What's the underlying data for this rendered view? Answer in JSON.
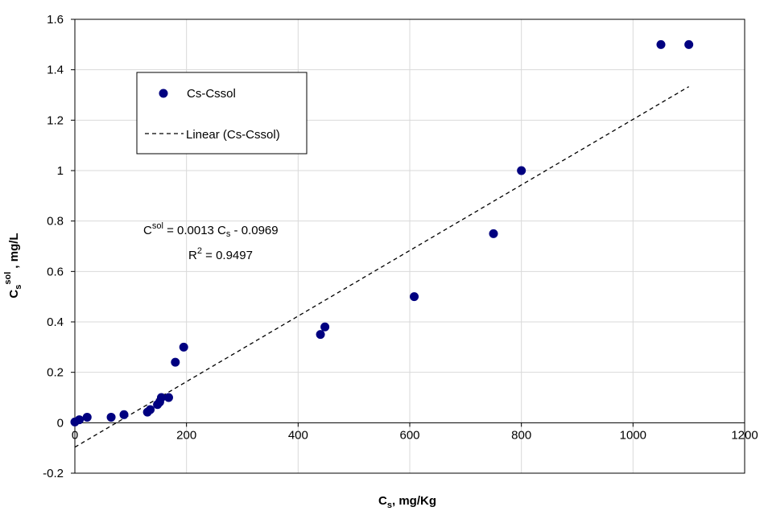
{
  "chart_data": {
    "type": "scatter",
    "title": "",
    "xlabel": {
      "main": "C",
      "sub": "s",
      "suffix": ", mg/Kg"
    },
    "ylabel": {
      "main": "C",
      "sub": "s",
      "sup": "sol",
      "suffix": " , mg/L"
    },
    "xlim": [
      0,
      1200
    ],
    "ylim": [
      -0.2,
      1.6
    ],
    "xticks": [
      "0",
      "200",
      "400",
      "600",
      "800",
      "1000",
      "1200"
    ],
    "yticks": [
      "-0.2",
      "0",
      "0.2",
      "0.4",
      "0.6",
      "0.8",
      "1",
      "1.2",
      "1.4",
      "1.6"
    ],
    "grid": true,
    "series": [
      {
        "name": "Cs-Cssol",
        "color": "#000080",
        "x": [
          0,
          8,
          22,
          65,
          88,
          130,
          135,
          148,
          152,
          155,
          168,
          180,
          195,
          440,
          448,
          608,
          750,
          800,
          1050,
          1100
        ],
        "y": [
          0.003,
          0.012,
          0.022,
          0.022,
          0.032,
          0.042,
          0.052,
          0.072,
          0.082,
          0.1,
          0.1,
          0.24,
          0.3,
          0.35,
          0.38,
          0.5,
          0.75,
          1.0,
          1.5,
          1.5
        ]
      }
    ],
    "trendline": {
      "name": "Linear (Cs-Cssol)",
      "slope": 0.0013,
      "intercept": -0.0969,
      "x_range": [
        0,
        1100
      ]
    },
    "legend": {
      "position": "top-left",
      "entries": [
        "Cs-Cssol",
        "Linear (Cs-Cssol)"
      ]
    },
    "annotation": {
      "eq_prefix": "C",
      "eq_sub": "s",
      "eq_sup": "sol",
      "eq_mid": " = 0.0013 C",
      "eq_sub2": "s",
      "eq_suffix": " - 0.0969",
      "r2_prefix": "R",
      "r2_sup": "2",
      "r2_suffix": " = 0.9497"
    }
  }
}
